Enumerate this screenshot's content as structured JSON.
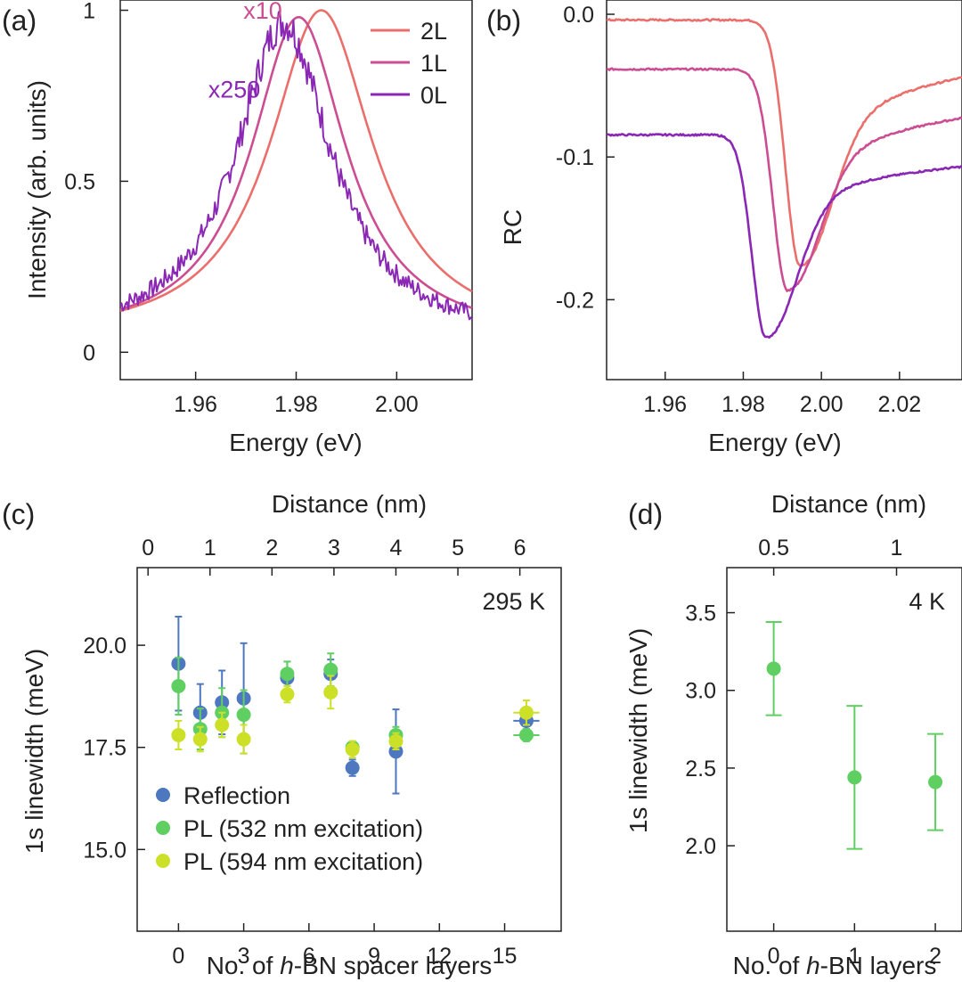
{
  "colors": {
    "c2L": "#ea6f6c",
    "c1L": "#cc4d92",
    "c0L": "#8a27b4",
    "reflection": "#4d78c0",
    "pl532": "#5fcf62",
    "pl594": "#cde028",
    "frame": "#222222"
  },
  "chart_data": [
    {
      "panel": "a",
      "type": "line",
      "panel_label": "(a)",
      "xlabel": "Energy (eV)",
      "ylabel": "Intensity (arb. units)",
      "xlim": [
        1.945,
        2.015
      ],
      "ylim": [
        -0.08,
        1.03
      ],
      "xticks": [
        1.96,
        1.98,
        2.0
      ],
      "xtick_labels": [
        "1.96",
        "1.98",
        "2.00"
      ],
      "yticks": [
        0,
        0.5,
        1
      ],
      "ytick_labels": [
        "0",
        "0.5",
        "1"
      ],
      "series": [
        {
          "name": "2L",
          "color_key": "c2L",
          "peak": 1.985,
          "amplitude": 0.965,
          "width": 0.0125,
          "noise": 0
        },
        {
          "name": "1L",
          "color_key": "c1L",
          "peak": 1.9805,
          "amplitude": 0.945,
          "width": 0.0115,
          "noise": 0
        },
        {
          "name": "0L",
          "color_key": "c0L",
          "peak": 1.9775,
          "amplitude": 0.93,
          "width": 0.0115,
          "noise": 0.035
        }
      ],
      "annotations": [
        {
          "text": "x10",
          "color_key": "c1L",
          "x": 1.9695,
          "y": 0.975
        },
        {
          "text": "x250",
          "color_key": "c0L",
          "x": 1.9625,
          "y": 0.745
        }
      ]
    },
    {
      "panel": "b",
      "type": "line",
      "panel_label": "(b)",
      "xlabel": "Energy (eV)",
      "ylabel": "RC",
      "xlim": [
        1.945,
        2.036
      ],
      "ylim": [
        -0.256,
        0.01
      ],
      "xticks": [
        1.96,
        1.98,
        2.0,
        2.02
      ],
      "xtick_labels": [
        "1.96",
        "1.98",
        "2.00",
        "2.02"
      ],
      "yticks": [
        0.0,
        -0.1,
        -0.2
      ],
      "ytick_labels": [
        "0.0",
        "-0.1",
        "-0.2"
      ],
      "series": [
        {
          "name": "2L",
          "color_key": "c2L",
          "baseline": -0.004,
          "dip_center": 1.9945,
          "dip_depth": 0.172,
          "left_width": 0.0052,
          "right_width": 0.0105,
          "tail": 0.56,
          "tail_width": 0.03
        },
        {
          "name": "1L",
          "color_key": "c1L",
          "baseline": -0.0385,
          "dip_center": 1.9913,
          "dip_depth": 0.155,
          "left_width": 0.0052,
          "right_width": 0.0105,
          "tail": 0.55,
          "tail_width": 0.03
        },
        {
          "name": "0L",
          "color_key": "c0L",
          "baseline": -0.0845,
          "dip_center": 1.9858,
          "dip_depth": 0.142,
          "left_width": 0.005,
          "right_width": 0.0105,
          "tail": 0.42,
          "tail_width": 0.03
        }
      ]
    },
    {
      "panel": "c",
      "type": "scatter",
      "panel_label": "(c)",
      "xlabel_prefix": "No. of ",
      "xlabel_italic": "h",
      "xlabel_suffix": "-BN  spacer layers",
      "ylabel": "1s linewidth (meV)",
      "top_xlabel": "Distance (nm)",
      "annotation": "295 K",
      "xlim": [
        -1.9,
        17.6
      ],
      "ylim": [
        13.0,
        21.9
      ],
      "xticks": [
        0,
        3,
        6,
        9,
        12,
        15
      ],
      "xtick_labels": [
        "0",
        "3",
        "6",
        "9",
        "12",
        "15"
      ],
      "yticks": [
        15.0,
        17.5,
        20.0
      ],
      "ytick_labels": [
        "15.0",
        "17.5",
        "20.0"
      ],
      "top_xticks": [
        0,
        1,
        2,
        3,
        4,
        5,
        6
      ],
      "top_xtick_labels": [
        "0",
        "1",
        "2",
        "3",
        "4",
        "5",
        "6"
      ],
      "top_x_offset_layers": -1.4,
      "top_x_layers_per_unit": 2.85,
      "legend": [
        "Reflection",
        "PL (532 nm excitation)",
        "PL (594 nm excitation)"
      ],
      "series": [
        {
          "name": "Reflection",
          "color_key": "reflection",
          "points": [
            {
              "x": 0,
              "y": 19.55,
              "err": 1.15
            },
            {
              "x": 1,
              "y": 18.35,
              "err": 0.7
            },
            {
              "x": 2,
              "y": 18.6,
              "err": 0.78
            },
            {
              "x": 3,
              "y": 18.7,
              "err": 1.35
            },
            {
              "x": 5,
              "y": 19.2,
              "err": 0.4
            },
            {
              "x": 7,
              "y": 19.3,
              "err": 0.35
            },
            {
              "x": 8,
              "y": 17.0,
              "err": 0.2
            },
            {
              "x": 10,
              "y": 17.4,
              "err": 1.03
            },
            {
              "x": 16,
              "y": 18.15,
              "err": 0.2,
              "xerr": 0.6
            }
          ]
        },
        {
          "name": "PL (532 nm excitation)",
          "color_key": "pl532",
          "points": [
            {
              "x": 0,
              "y": 19.0,
              "err": 0.7
            },
            {
              "x": 1,
              "y": 17.95,
              "err": 0.5
            },
            {
              "x": 2,
              "y": 18.35,
              "err": 0.6
            },
            {
              "x": 3,
              "y": 18.3,
              "err": 0.6
            },
            {
              "x": 5,
              "y": 19.3,
              "err": 0.3
            },
            {
              "x": 7,
              "y": 19.4,
              "err": 0.4
            },
            {
              "x": 8,
              "y": 17.5,
              "err": 0.15
            },
            {
              "x": 10,
              "y": 17.8,
              "err": 0.2
            },
            {
              "x": 16,
              "y": 17.8,
              "err": 0.15,
              "xerr": 0.6
            }
          ]
        },
        {
          "name": "PL (594 nm excitation)",
          "color_key": "pl594",
          "points": [
            {
              "x": 0,
              "y": 17.8,
              "err": 0.35
            },
            {
              "x": 1,
              "y": 17.7,
              "err": 0.3
            },
            {
              "x": 2,
              "y": 18.05,
              "err": 0.3
            },
            {
              "x": 3,
              "y": 17.7,
              "err": 0.35
            },
            {
              "x": 5,
              "y": 18.8,
              "err": 0.2
            },
            {
              "x": 7,
              "y": 18.85,
              "err": 0.4
            },
            {
              "x": 8,
              "y": 17.45,
              "err": 0.2
            },
            {
              "x": 10,
              "y": 17.65,
              "err": 0.2
            },
            {
              "x": 16,
              "y": 18.35,
              "err": 0.3,
              "xerr": 0.6
            }
          ]
        }
      ]
    },
    {
      "panel": "d",
      "type": "scatter",
      "panel_label": "(d)",
      "xlabel_prefix": "No. of ",
      "xlabel_italic": "h",
      "xlabel_suffix": "-BN layers",
      "ylabel": "1s linewidth (meV)",
      "top_xlabel": "Distance (nm)",
      "annotation": "4 K",
      "xlim": [
        -0.58,
        2.33
      ],
      "ylim": [
        1.45,
        3.79
      ],
      "xticks": [
        0,
        1,
        2
      ],
      "xtick_labels": [
        "0",
        "1",
        "2"
      ],
      "yticks": [
        2.0,
        2.5,
        3.0,
        3.5
      ],
      "ytick_labels": [
        "2.0",
        "2.5",
        "3.0",
        "3.5"
      ],
      "top_xticks": [
        0.5,
        1
      ],
      "top_xtick_labels": [
        "0.5",
        "1"
      ],
      "top_x_offset_layers": -1.52,
      "top_x_layers_per_unit": 3.04,
      "series": [
        {
          "name": "PL",
          "color_key": "pl532",
          "points": [
            {
              "x": 0,
              "y": 3.14,
              "err": 0.3
            },
            {
              "x": 1,
              "y": 2.44,
              "err": 0.46
            },
            {
              "x": 2,
              "y": 2.41,
              "err": 0.31
            }
          ]
        }
      ]
    }
  ]
}
